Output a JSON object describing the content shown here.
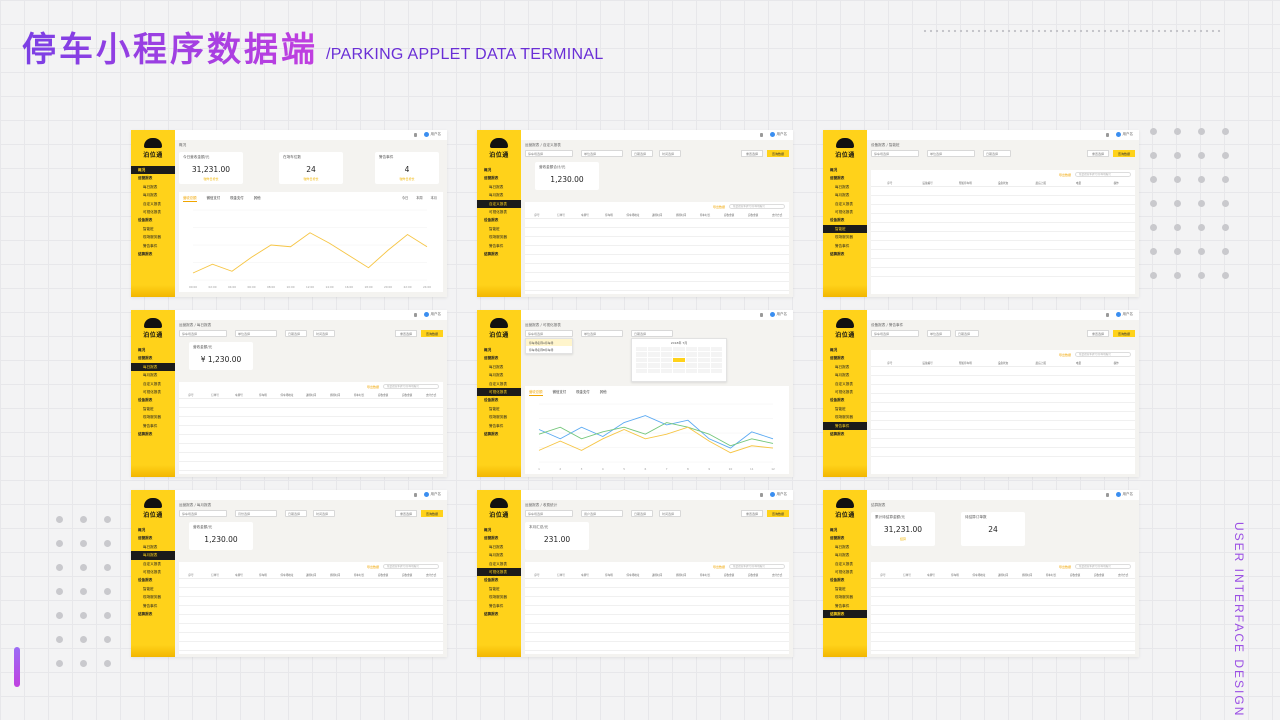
{
  "header": {
    "title_cn": "停车小程序数据端",
    "title_en": "/PARKING APPLET DATA TERMINAL"
  },
  "side_label": "USER INTERFACE DESIGN",
  "brand": {
    "logo_text": "泊位通"
  },
  "topbar": {
    "user": "用户名"
  },
  "nav_items": [
    {
      "label": "概况",
      "group": true
    },
    {
      "label": "运营报表",
      "group": true
    },
    {
      "label": "每日报表"
    },
    {
      "label": "每月报表"
    },
    {
      "label": "自定义报表"
    },
    {
      "label": "可视化报表"
    },
    {
      "label": "设备报表",
      "group": true
    },
    {
      "label": "智能桩"
    },
    {
      "label": "现场服务器"
    },
    {
      "label": "警告事件"
    },
    {
      "label": "结算报表",
      "group": true
    }
  ],
  "common": {
    "filter_parking": "停车场选择",
    "filter_unit": "单位选择",
    "filter_month": "月份选择",
    "filter_date": "日期选择",
    "filter_time": "时间选择",
    "btn_reset": "重置选择",
    "btn_query": "查询数据",
    "export_link": "导出数据",
    "search_placeholder": "在此搜索车牌号/停车场编号",
    "view_detail": "查看详情",
    "col_headers": [
      "序号",
      "订单号",
      "车牌号",
      "停车场",
      "停车场地址",
      "进场时间",
      "离场时间",
      "停车时长",
      "应收金额",
      "实收金额",
      "支付方式"
    ],
    "dev_headers": [
      "序号",
      "设备编号",
      "所属停车场",
      "设备状态",
      "最后上报",
      "电量",
      "操作"
    ]
  },
  "panels": {
    "overview": {
      "crumb": "概况",
      "cards": [
        {
          "label": "今日营收金额/元",
          "value": "31,231.00",
          "sub": "较昨日增长"
        },
        {
          "label": "在场车位数",
          "value": "24",
          "sub": "较昨日增长"
        },
        {
          "label": "警告事件",
          "value": "4",
          "sub": "较昨日增长"
        }
      ],
      "tabs": [
        "营收总额",
        "微信支付",
        "现金支付",
        "其他"
      ],
      "ranges": [
        "今日",
        "本周",
        "本月"
      ]
    },
    "custom": {
      "crumb": "运营报表 / 自定义报表",
      "card_label": "营收金额合计/元",
      "card_value": "1,230.00"
    },
    "pile": {
      "crumb": "设备报表 / 智能桩"
    },
    "daily": {
      "crumb": "运营报表 / 每日报表",
      "card_label": "营收金额/元",
      "card_value": "¥ 1,230.00"
    },
    "visual": {
      "crumb": "运营报表 / 可视化报表",
      "dropdown": [
        "停车场名称A停车场",
        "停车场名称B停车场"
      ],
      "cal_title": "2018年 7月",
      "tabs": [
        "营收总额",
        "微信支付",
        "现金支付",
        "其他"
      ]
    },
    "alarm": {
      "crumb": "设备报表 / 警告事件"
    },
    "monthly": {
      "crumb": "运营报表 / 每月报表",
      "card_label": "营收金额/元",
      "card_value": "1,230.00"
    },
    "cashier": {
      "crumb": "运营报表 / 收费统计",
      "card_label": "本月汇总/元",
      "card_value": "231.00",
      "filter_user": "用户选择"
    },
    "settle": {
      "crumb": "结算报表",
      "cards": [
        {
          "label": "累计待结算金额/元",
          "value": "31,231.00",
          "sub": "结算"
        },
        {
          "label": "待结算订单数",
          "value": "24",
          "sub": ""
        }
      ]
    }
  },
  "chart_data": [
    {
      "type": "line",
      "categories": [
        "00:00",
        "02:00",
        "04:00",
        "06:00",
        "08:00",
        "10:00",
        "12:00",
        "14:00",
        "16:00",
        "18:00",
        "20:00",
        "22:00",
        "24:00"
      ],
      "series": [
        {
          "values": [
            4,
            9,
            5,
            13,
            20,
            19,
            27,
            21,
            14,
            7,
            17,
            26,
            19
          ],
          "color": "#f6c544"
        }
      ],
      "ylim": [
        0,
        40
      ]
    },
    {
      "type": "line",
      "categories": [
        "1",
        "2",
        "3",
        "4",
        "5",
        "6",
        "7",
        "8",
        "9",
        "10",
        "11",
        "12"
      ],
      "series": [
        {
          "values": [
            28,
            20,
            30,
            22,
            34,
            40,
            32,
            36,
            20,
            12,
            26,
            20
          ],
          "color": "#5aa9f2"
        },
        {
          "values": [
            24,
            30,
            20,
            26,
            30,
            24,
            34,
            30,
            24,
            14,
            20,
            16
          ],
          "color": "#73c67a"
        },
        {
          "values": [
            10,
            18,
            10,
            20,
            28,
            20,
            24,
            30,
            18,
            8,
            14,
            12
          ],
          "color": "#f6c544"
        }
      ],
      "ylim": [
        0,
        50
      ]
    }
  ]
}
